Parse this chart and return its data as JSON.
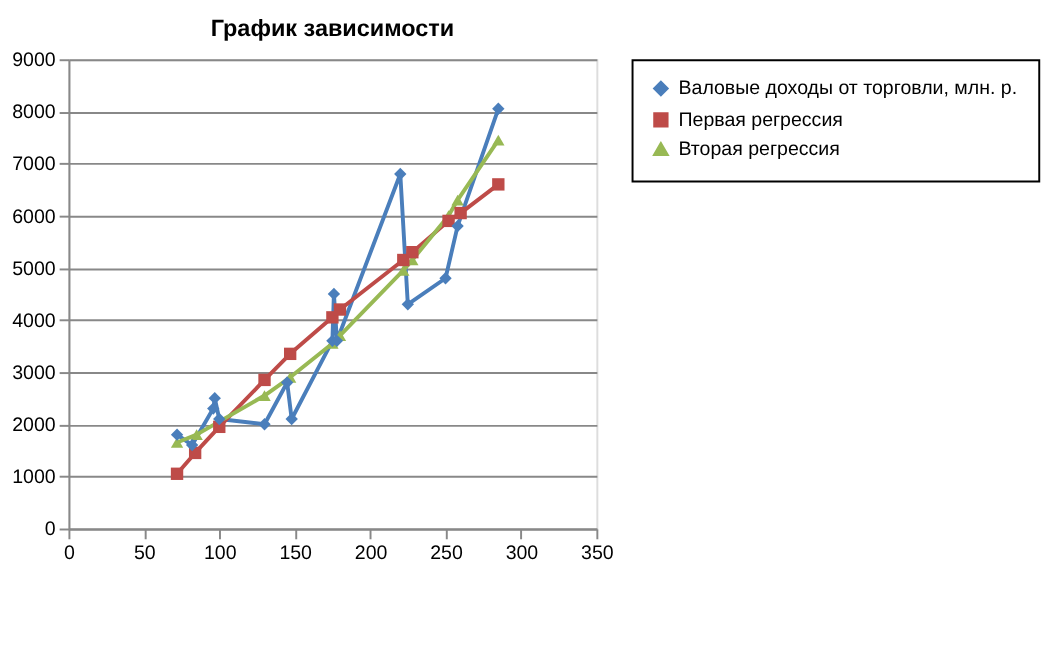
{
  "chart_data": {
    "type": "line",
    "title": "График зависимости",
    "xlim": [
      0,
      350
    ],
    "xticks": [
      0,
      50,
      100,
      150,
      200,
      250,
      300,
      350
    ],
    "ylim": [
      0,
      9000
    ],
    "yticks": [
      0,
      1000,
      2000,
      3000,
      4000,
      5000,
      6000,
      7000,
      8000,
      9000
    ],
    "grid": "y",
    "legend": "right",
    "series": [
      {
        "name": "Валовые доходы от торговли, млн. р.",
        "color": "#4a7ebb",
        "marker": "diamond",
        "x": [
          72,
          82,
          96,
          97,
          100,
          130,
          145,
          148,
          175,
          176,
          178,
          220,
          225,
          250,
          258,
          285
        ],
        "values": [
          1800,
          1600,
          2300,
          2500,
          2100,
          2000,
          2800,
          2100,
          3600,
          4500,
          3600,
          6800,
          4300,
          4800,
          5800,
          8050
        ]
      },
      {
        "name": "Первая регрессия",
        "color": "#be4b48",
        "marker": "square",
        "x": [
          72,
          84,
          100,
          130,
          147,
          175,
          180,
          222,
          228,
          252,
          260,
          285
        ],
        "values": [
          1050,
          1450,
          1950,
          2850,
          3350,
          4050,
          4200,
          5150,
          5300,
          5900,
          6050,
          6600
        ]
      },
      {
        "name": "Вторая регрессия",
        "color": "#98b954",
        "marker": "triangle",
        "x": [
          72,
          85,
          100,
          130,
          147,
          175,
          180,
          222,
          228,
          252,
          258,
          285
        ],
        "values": [
          1650,
          1800,
          2050,
          2550,
          2900,
          3550,
          3700,
          4950,
          5150,
          6000,
          6300,
          7450
        ]
      }
    ]
  }
}
